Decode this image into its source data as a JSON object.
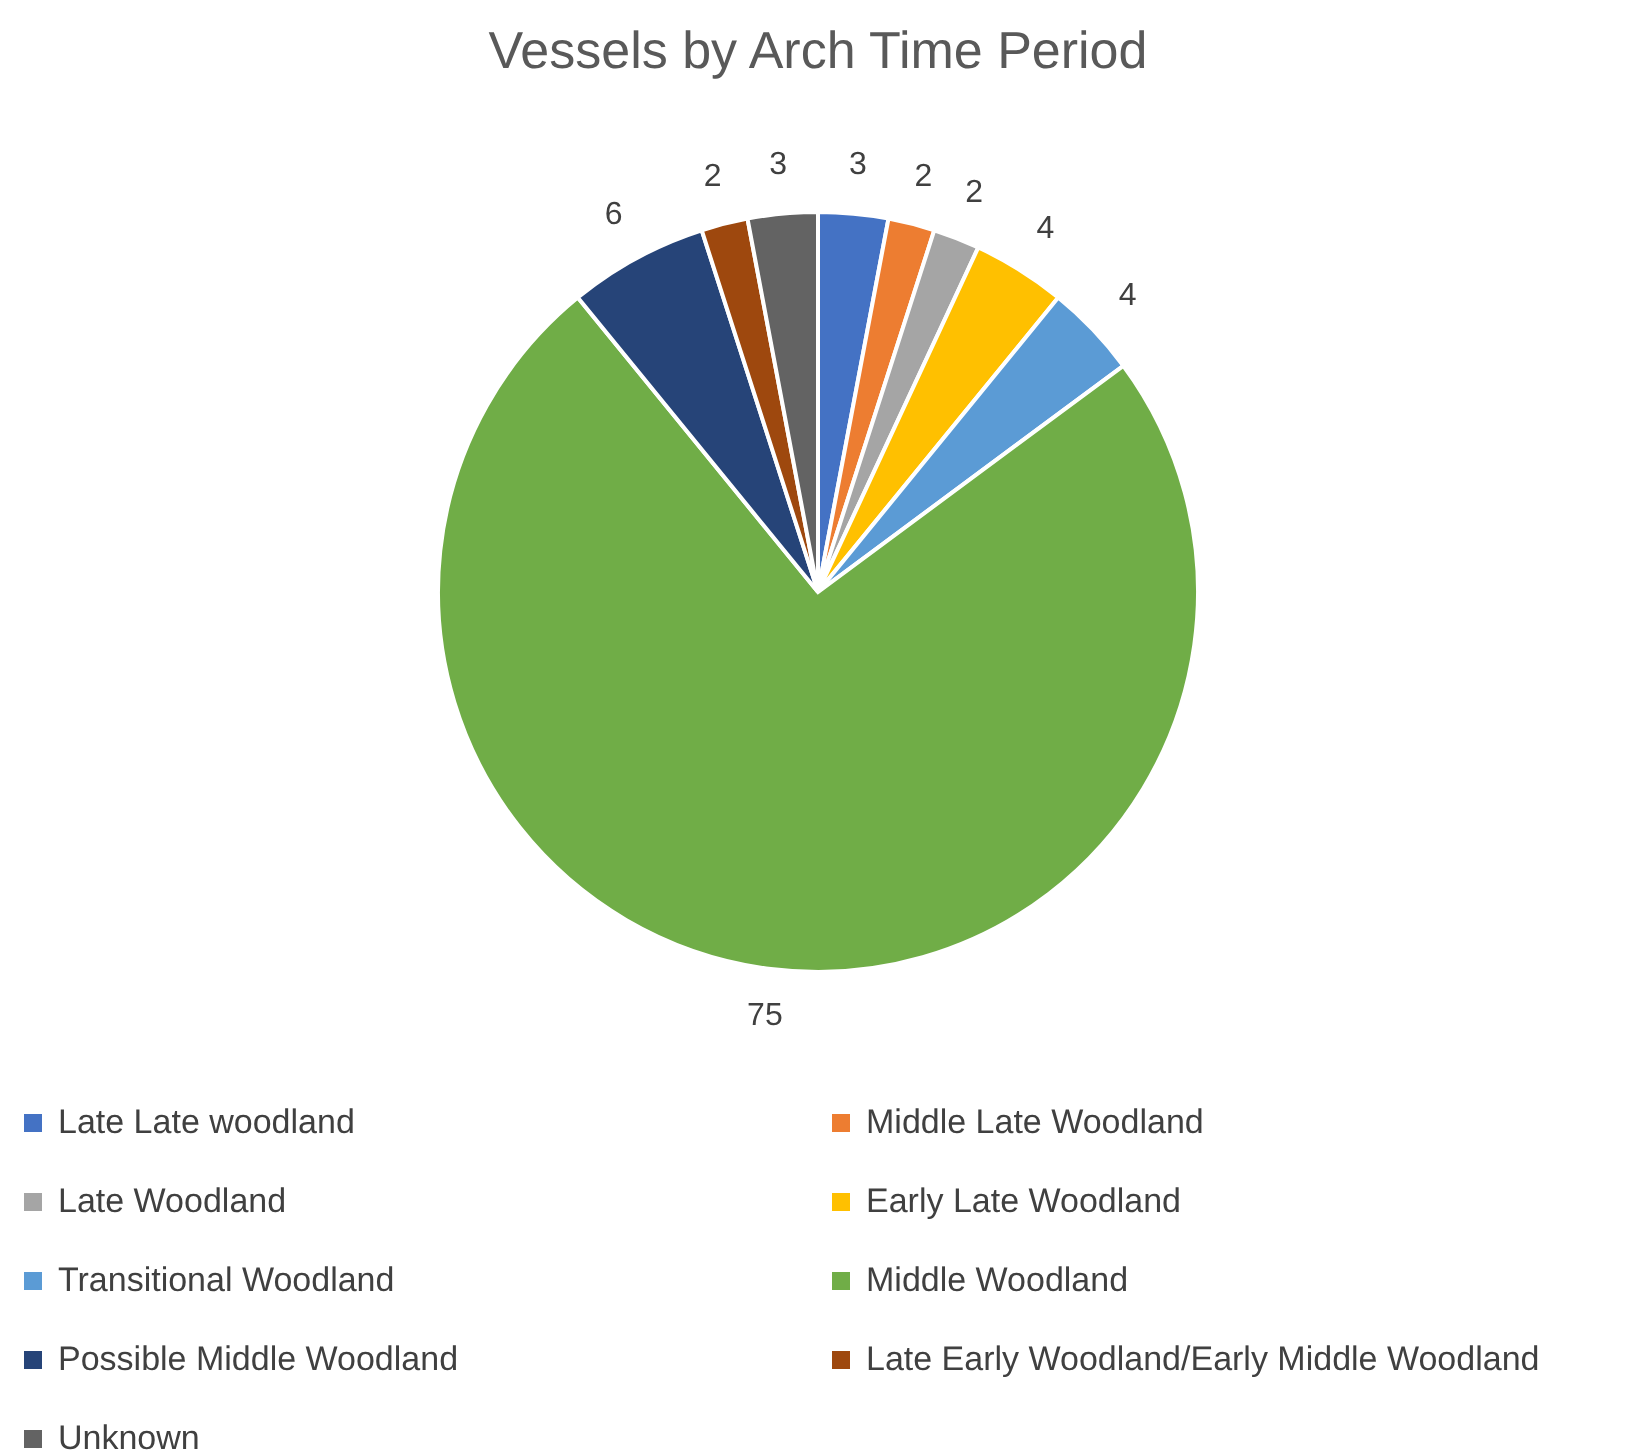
{
  "chart_data": {
    "type": "pie",
    "title": "Vessels by Arch Time Period",
    "categories": [
      "Late Late woodland",
      "Middle Late Woodland",
      "Late Woodland",
      "Early Late Woodland",
      "Transitional Woodland",
      "Middle Woodland",
      "Possible Middle Woodland",
      "Late Early Woodland/Early Middle Woodland",
      "Unknown"
    ],
    "values": [
      3,
      2,
      2,
      4,
      4,
      75,
      6,
      2,
      3
    ],
    "colors": [
      "#4472c4",
      "#ed7d31",
      "#a5a5a5",
      "#ffc000",
      "#5b9bd5",
      "#70ad47",
      "#264478",
      "#9e480e",
      "#636363"
    ],
    "data_labels": true,
    "legend": "bottom"
  }
}
